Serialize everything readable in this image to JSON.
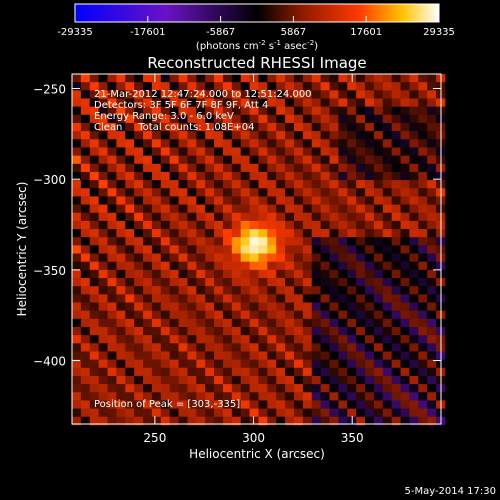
{
  "chart_data": {
    "type": "heatmap",
    "title": "Reconstructed RHESSI Image",
    "xlabel": "Heliocentric X (arcsec)",
    "ylabel": "Heliocentric Y (arcsec)",
    "xlim": [
      208,
      395
    ],
    "ylim": [
      -435,
      -242
    ],
    "xticks": [
      250,
      300,
      350
    ],
    "yticks": [
      -250,
      -300,
      -350,
      -400
    ],
    "grid": false,
    "colorbar": {
      "min": -29335,
      "max": 29335,
      "ticks": [
        "-29335",
        "-17601",
        "-5867",
        "5867",
        "17601",
        "29335"
      ],
      "unit_prefix": "(photons cm",
      "unit_exp1": "-2",
      "unit_mid1": " s",
      "unit_exp2": "-1",
      "unit_mid2": " asec",
      "unit_exp3": "-2",
      "unit_suffix": ")",
      "colormap": "hot/blue-purple diverging"
    },
    "annotations": [
      "21-Mar-2012 12:47:24.000 to 12:51:24.000",
      "Detectors: 3F 5F 6F 7F 8F 9F, Att 4",
      "Energy Range: 3.0 - 6.0 keV",
      "Clean     Total counts: 1.08E+04"
    ],
    "peak_label": "Position of Peak = [303,-335]",
    "peak": {
      "x": 303,
      "y": -335,
      "value": 29335
    },
    "source": {
      "x": 301,
      "y": -336,
      "sigma": 9
    },
    "stripe_period": 16.5
  },
  "footer_date": "5-May-2014 17:30"
}
